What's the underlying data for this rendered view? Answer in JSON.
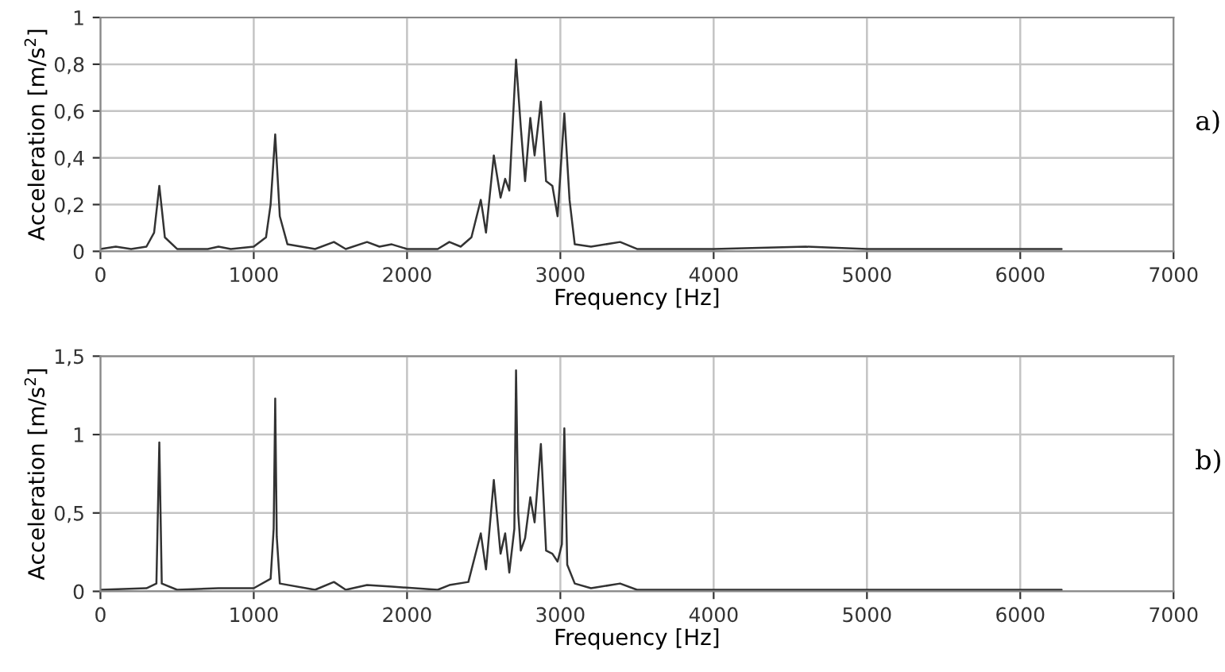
{
  "chart_data": [
    {
      "type": "line",
      "xlabel": "Frequency [Hz]",
      "ylabel": "Acceleration [m/s$^{2}$]",
      "annotations": [
        "a)"
      ],
      "xlim": [
        0,
        7000
      ],
      "xticks": [
        0,
        1000,
        2000,
        3000,
        4000,
        5000,
        6000,
        7000
      ],
      "ylim": [
        0,
        1
      ],
      "yticks": [
        0,
        {
          "value": 0.2,
          "label": "0,2"
        },
        {
          "value": 0.4,
          "label": "0,4"
        },
        {
          "value": 0.6,
          "label": "0,6"
        },
        {
          "value": 0.8,
          "label": "0,8"
        },
        1
      ],
      "grid": true,
      "marker": "none",
      "line_style": "solid",
      "series": [
        {
          "color": "#333333",
          "x": [
            0,
            100,
            200,
            300,
            350,
            384,
            420,
            500,
            700,
            770,
            850,
            1000,
            1080,
            1110,
            1140,
            1170,
            1220,
            1400,
            1523,
            1600,
            1739,
            1820,
            1900,
            2000,
            2200,
            2276,
            2350,
            2420,
            2481,
            2515,
            2566,
            2610,
            2640,
            2667,
            2711,
            2742,
            2770,
            2804,
            2832,
            2873,
            2907,
            2948,
            2982,
            3026,
            3060,
            3094,
            3200,
            3390,
            3500,
            4000,
            4600,
            5000,
            6270
          ],
          "values": [
            0.01,
            0.02,
            0.01,
            0.02,
            0.08,
            0.28,
            0.06,
            0.01,
            0.01,
            0.02,
            0.01,
            0.02,
            0.06,
            0.2,
            0.5,
            0.15,
            0.03,
            0.01,
            0.04,
            0.01,
            0.04,
            0.02,
            0.03,
            0.01,
            0.01,
            0.04,
            0.02,
            0.06,
            0.22,
            0.08,
            0.41,
            0.23,
            0.31,
            0.26,
            0.82,
            0.53,
            0.3,
            0.57,
            0.41,
            0.64,
            0.3,
            0.28,
            0.15,
            0.59,
            0.22,
            0.03,
            0.02,
            0.04,
            0.01,
            0.01,
            0.02,
            0.01,
            0.01
          ]
        }
      ]
    },
    {
      "type": "line",
      "xlabel": "Frequency [Hz]",
      "ylabel": "Acceleration [m/s$^{2}$]",
      "annotations": [
        "b)"
      ],
      "xlim": [
        0,
        7000
      ],
      "xticks": [
        0,
        1000,
        2000,
        3000,
        4000,
        5000,
        6000,
        7000
      ],
      "ylim": [
        0,
        1.5
      ],
      "yticks": [
        0,
        {
          "value": 0.5,
          "label": "0,5"
        },
        1,
        {
          "value": 1.5,
          "label": "1,5"
        }
      ],
      "grid": true,
      "marker": "none",
      "line_style": "solid",
      "series": [
        {
          "color": "#333333",
          "x": [
            0,
            300,
            365,
            384,
            400,
            500,
            770,
            1000,
            1110,
            1130,
            1140,
            1150,
            1170,
            1400,
            1523,
            1600,
            1739,
            1900,
            2200,
            2276,
            2400,
            2481,
            2515,
            2566,
            2610,
            2640,
            2667,
            2700,
            2711,
            2725,
            2742,
            2770,
            2804,
            2832,
            2873,
            2907,
            2948,
            2982,
            3010,
            3026,
            3045,
            3094,
            3200,
            3390,
            3500,
            4000,
            5000,
            6270
          ],
          "values": [
            0.01,
            0.02,
            0.05,
            0.95,
            0.05,
            0.01,
            0.02,
            0.02,
            0.08,
            0.4,
            1.23,
            0.35,
            0.05,
            0.01,
            0.06,
            0.01,
            0.04,
            0.03,
            0.01,
            0.04,
            0.06,
            0.37,
            0.14,
            0.71,
            0.24,
            0.37,
            0.12,
            0.4,
            1.41,
            0.5,
            0.26,
            0.34,
            0.6,
            0.44,
            0.94,
            0.26,
            0.24,
            0.19,
            0.3,
            1.04,
            0.17,
            0.05,
            0.02,
            0.05,
            0.01,
            0.01,
            0.01,
            0.01
          ]
        }
      ]
    }
  ]
}
